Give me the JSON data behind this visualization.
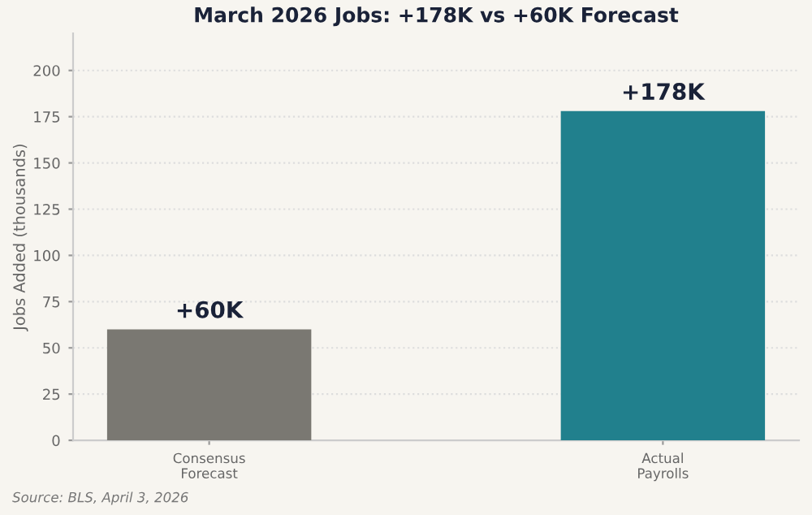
{
  "chart_data": {
    "type": "bar",
    "title": "March 2026 Jobs: +178K vs +60K Forecast",
    "ylabel": "Jobs Added (thousands)",
    "categories": [
      "Consensus\nForecast",
      "Actual\nPayrolls"
    ],
    "values": [
      60,
      178
    ],
    "colors": [
      "#7a7872",
      "#21808d"
    ],
    "value_labels": [
      "+60K",
      "+178K"
    ],
    "ylim": [
      0,
      220
    ],
    "yticks": [
      0,
      25,
      50,
      75,
      100,
      125,
      150,
      175,
      200
    ],
    "grid": "y",
    "annotations": [
      "Source: BLS, April 3, 2026"
    ]
  }
}
